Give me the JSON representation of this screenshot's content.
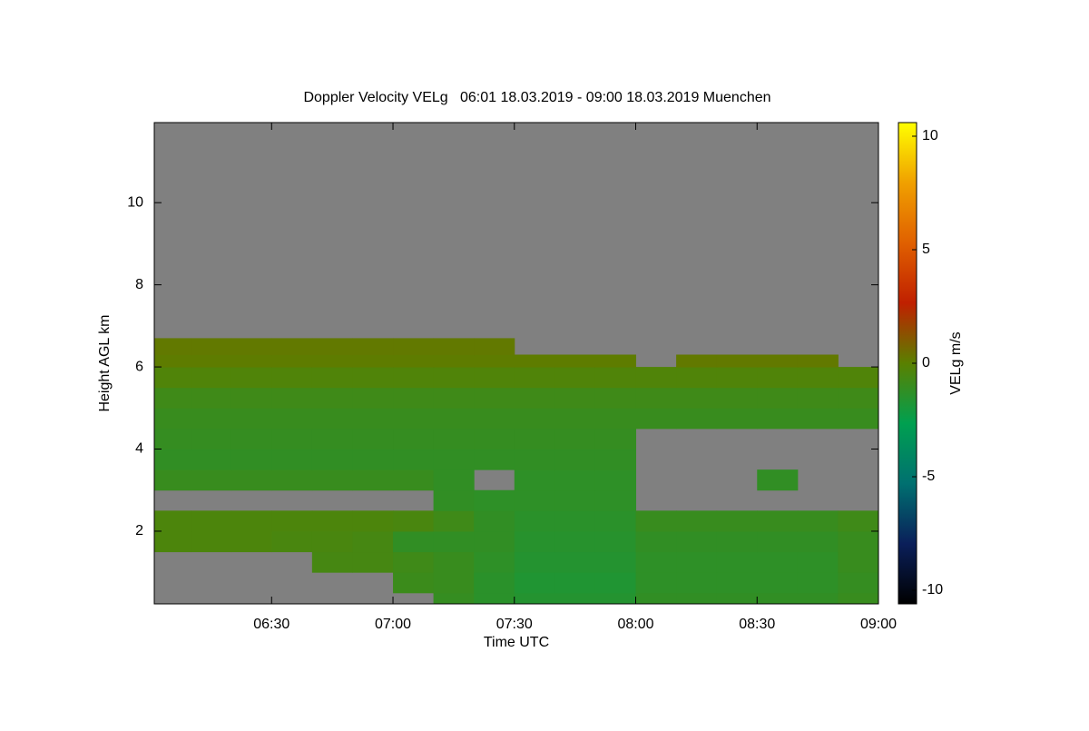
{
  "chart_data": {
    "type": "heatmap",
    "title": "Doppler Velocity VELg   06:01 18.03.2019 - 09:00 18.03.2019 Muenchen",
    "x_label": "Time UTC",
    "y_label": "Height AGL km",
    "colorbar_label": "VELg m/s",
    "xlim": [
      "06:01",
      "09:00"
    ],
    "xticks": [
      "06:30",
      "07:00",
      "07:30",
      "08:00",
      "08:30",
      "09:00"
    ],
    "ylim": [
      0.23,
      11.95
    ],
    "yticks": [
      2,
      4,
      6,
      8,
      10
    ],
    "zlim": [
      -10.6,
      10.6
    ],
    "zticks": [
      -10,
      -5,
      0,
      5,
      10
    ],
    "no_data_color": "#808080",
    "colormap": [
      "#000000",
      "#0a1f5a",
      "#007070",
      "#00a050",
      "#5a8000",
      "#c02000",
      "#e06000",
      "#f0a000",
      "#ffff00"
    ],
    "x_bins": [
      "06:01",
      "06:10",
      "06:20",
      "06:30",
      "06:40",
      "06:50",
      "07:00",
      "07:10",
      "07:20",
      "07:30",
      "07:40",
      "07:50",
      "08:00",
      "08:10",
      "08:20",
      "08:30",
      "08:40",
      "08:50",
      "09:00"
    ],
    "y_bins": [
      0.2,
      0.5,
      1,
      1.5,
      2,
      2.5,
      3,
      3.5,
      4,
      4.5,
      5,
      5.5,
      6,
      6.3,
      6.7
    ],
    "values": [
      [
        null,
        null,
        null,
        null,
        null,
        null,
        null,
        -1.1,
        -1.4,
        -1.6,
        -1.6,
        -1.6,
        -1.2,
        -1.2,
        -1.2,
        -1.2,
        -1.2,
        -1.0
      ],
      [
        null,
        null,
        null,
        null,
        null,
        null,
        -0.9,
        -1.0,
        -1.4,
        -1.7,
        -1.7,
        -1.7,
        -1.3,
        -1.3,
        -1.3,
        -1.3,
        -1.3,
        -1.1
      ],
      [
        null,
        null,
        null,
        null,
        -0.6,
        -0.6,
        -0.8,
        -1.0,
        -1.3,
        -1.6,
        -1.6,
        -1.6,
        -1.3,
        -1.3,
        -1.3,
        -1.3,
        -1.3,
        -1.0
      ],
      [
        -0.4,
        -0.4,
        -0.4,
        -0.5,
        -0.5,
        -0.6,
        -1.2,
        -1.2,
        -1.2,
        -1.5,
        -1.5,
        -1.5,
        -1.2,
        -1.2,
        -1.2,
        -1.2,
        -1.2,
        -1.0
      ],
      [
        -0.4,
        -0.4,
        -0.4,
        -0.4,
        -0.4,
        -0.4,
        -0.5,
        -0.8,
        -1.2,
        -1.4,
        -1.4,
        -1.4,
        -1.0,
        -1.0,
        -1.0,
        -1.0,
        -1.0,
        -0.8
      ],
      [
        null,
        null,
        null,
        null,
        null,
        null,
        null,
        -1.2,
        -1.3,
        -1.3,
        -1.3,
        -1.3,
        null,
        null,
        null,
        null,
        null,
        null
      ],
      [
        -1.0,
        -1.0,
        -1.0,
        -1.0,
        -1.0,
        -1.0,
        -1.0,
        -1.2,
        null,
        -1.3,
        -1.3,
        -1.3,
        null,
        null,
        null,
        -1.2,
        null,
        null
      ],
      [
        -1.2,
        -1.2,
        -1.2,
        -1.2,
        -1.2,
        -1.2,
        -1.2,
        -1.2,
        -1.2,
        -1.2,
        -1.2,
        -1.2,
        null,
        null,
        null,
        null,
        null,
        null
      ],
      [
        -1.1,
        -1.1,
        -1.1,
        -1.1,
        -1.1,
        -1.1,
        -1.1,
        -1.1,
        -1.1,
        -1.1,
        -1.1,
        -1.1,
        null,
        null,
        null,
        null,
        null,
        null
      ],
      [
        -1.0,
        -1.0,
        -1.0,
        -1.0,
        -1.0,
        -1.0,
        -1.0,
        -1.0,
        -1.0,
        -1.0,
        -1.0,
        -1.0,
        -1.0,
        -1.0,
        -1.0,
        -1.0,
        -1.0,
        -1.0
      ],
      [
        -0.8,
        -0.8,
        -0.8,
        -0.8,
        -0.8,
        -0.8,
        -0.8,
        -0.8,
        -0.8,
        -0.8,
        -0.8,
        -0.8,
        -0.8,
        -0.8,
        -0.8,
        -0.8,
        -0.8,
        -0.8
      ],
      [
        -0.3,
        -0.3,
        -0.3,
        -0.3,
        -0.3,
        -0.3,
        -0.3,
        -0.3,
        -0.3,
        -0.3,
        -0.3,
        -0.3,
        -0.3,
        -0.3,
        -0.3,
        -0.3,
        -0.3,
        -0.3
      ],
      [
        0.1,
        0.1,
        0.1,
        0.1,
        0.1,
        0.1,
        0.1,
        0.1,
        0.1,
        0.1,
        0.1,
        0.1,
        null,
        0.2,
        0.2,
        0.2,
        0.2,
        null
      ],
      [
        0.2,
        0.2,
        0.2,
        0.2,
        0.2,
        0.2,
        0.2,
        0.2,
        0.2,
        null,
        null,
        null,
        null,
        null,
        null,
        null,
        null,
        null
      ]
    ]
  }
}
